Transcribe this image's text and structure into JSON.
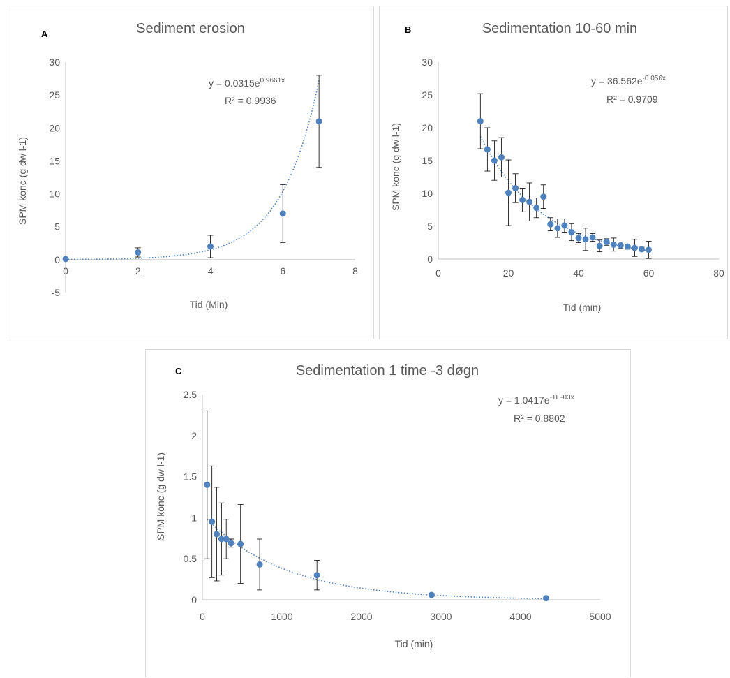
{
  "colors": {
    "series": "#4f81bd",
    "trend": "#4f81bd",
    "axis": "#bfbfbf",
    "text": "#595959",
    "error_bar": "#000000"
  },
  "chart_data": [
    {
      "panel_letter": "A",
      "type": "scatter",
      "title": "Sediment erosion",
      "xlabel": "Tid (Min)",
      "ylabel": "SPM konc (g dw l-1)",
      "xlim": [
        0,
        8
      ],
      "ylim": [
        -5,
        30
      ],
      "x_ticks": [
        "0",
        "2",
        "4",
        "6",
        "8"
      ],
      "y_ticks": [
        "-5",
        "0",
        "5",
        "10",
        "15",
        "20",
        "25",
        "30"
      ],
      "x_tick_values": [
        0,
        2,
        4,
        6,
        8
      ],
      "y_tick_values": [
        -5,
        0,
        5,
        10,
        15,
        20,
        25,
        30
      ],
      "points": [
        {
          "x": 0,
          "y": 0.1,
          "err": 0
        },
        {
          "x": 2,
          "y": 1.1,
          "err": 0.7
        },
        {
          "x": 4,
          "y": 2.0,
          "err": 1.7
        },
        {
          "x": 6,
          "y": 7.0,
          "err": 4.4
        },
        {
          "x": 7,
          "y": 21.0,
          "err": 7.0
        }
      ],
      "trendline": {
        "type": "exponential",
        "a": 0.0315,
        "b": 0.9661,
        "x_range": [
          0,
          7
        ]
      },
      "equation_base": "y = 0.0315e",
      "equation_exp": "0.9661x",
      "r2_text": "R² = 0.9936"
    },
    {
      "panel_letter": "B",
      "type": "scatter",
      "title": "Sedimentation 10-60 min",
      "xlabel": "Tid (min)",
      "ylabel": "SPM konc (g dw l-1)",
      "xlim": [
        0,
        80
      ],
      "ylim": [
        0,
        30
      ],
      "x_ticks": [
        "0",
        "20",
        "40",
        "60",
        "80"
      ],
      "y_ticks": [
        "0",
        "5",
        "10",
        "15",
        "20",
        "25",
        "30"
      ],
      "x_tick_values": [
        0,
        20,
        40,
        60,
        80
      ],
      "y_tick_values": [
        0,
        5,
        10,
        15,
        20,
        25,
        30
      ],
      "points": [
        {
          "x": 12,
          "y": 21.0,
          "err": 4.2
        },
        {
          "x": 14,
          "y": 16.7,
          "err": 3.3
        },
        {
          "x": 16,
          "y": 15.0,
          "err": 3.0
        },
        {
          "x": 18,
          "y": 15.5,
          "err": 3.0
        },
        {
          "x": 20,
          "y": 10.1,
          "err": 5.0
        },
        {
          "x": 22,
          "y": 10.8,
          "err": 2.2
        },
        {
          "x": 24,
          "y": 9.0,
          "err": 1.8
        },
        {
          "x": 26,
          "y": 8.7,
          "err": 2.9
        },
        {
          "x": 28,
          "y": 7.8,
          "err": 1.5
        },
        {
          "x": 30,
          "y": 9.5,
          "err": 1.8
        },
        {
          "x": 32,
          "y": 5.3,
          "err": 1.0
        },
        {
          "x": 34,
          "y": 4.7,
          "err": 1.4
        },
        {
          "x": 36,
          "y": 5.1,
          "err": 1.0
        },
        {
          "x": 38,
          "y": 4.1,
          "err": 1.3
        },
        {
          "x": 40,
          "y": 3.2,
          "err": 0.7
        },
        {
          "x": 42,
          "y": 3.0,
          "err": 1.7
        },
        {
          "x": 44,
          "y": 3.3,
          "err": 0.6
        },
        {
          "x": 46,
          "y": 2.0,
          "err": 0.9
        },
        {
          "x": 48,
          "y": 2.6,
          "err": 0.5
        },
        {
          "x": 50,
          "y": 2.2,
          "err": 1.0
        },
        {
          "x": 52,
          "y": 2.1,
          "err": 0.5
        },
        {
          "x": 54,
          "y": 1.9,
          "err": 0.4
        },
        {
          "x": 56,
          "y": 1.7,
          "err": 1.3
        },
        {
          "x": 58,
          "y": 1.5,
          "err": 0.3
        },
        {
          "x": 60,
          "y": 1.4,
          "err": 1.3
        }
      ],
      "trendline": {
        "type": "exponential",
        "a": 36.562,
        "b": -0.056,
        "x_range": [
          12,
          60
        ]
      },
      "equation_base": "y = 36.562e",
      "equation_exp": "-0.056x",
      "r2_text": "R² = 0.9709"
    },
    {
      "panel_letter": "C",
      "type": "scatter",
      "title": "Sedimentation 1 time -3 døgn",
      "xlabel": "Tid (min)",
      "ylabel": "SPM konc (g dw l-1)",
      "xlim": [
        0,
        5000
      ],
      "ylim": [
        0,
        2.5
      ],
      "x_ticks": [
        "0",
        "1000",
        "2000",
        "3000",
        "4000",
        "5000"
      ],
      "y_ticks": [
        "0",
        "0.5",
        "1",
        "1.5",
        "2",
        "2.5"
      ],
      "x_tick_values": [
        0,
        1000,
        2000,
        3000,
        4000,
        5000
      ],
      "y_tick_values": [
        0,
        0.5,
        1,
        1.5,
        2,
        2.5
      ],
      "points": [
        {
          "x": 60,
          "y": 1.4,
          "err": 0.9
        },
        {
          "x": 120,
          "y": 0.95,
          "err": 0.68
        },
        {
          "x": 180,
          "y": 0.8,
          "err": 0.57
        },
        {
          "x": 240,
          "y": 0.74,
          "err": 0.44
        },
        {
          "x": 300,
          "y": 0.74,
          "err": 0.24
        },
        {
          "x": 360,
          "y": 0.69,
          "err": 0.05
        },
        {
          "x": 480,
          "y": 0.68,
          "err": 0.48
        },
        {
          "x": 720,
          "y": 0.43,
          "err": 0.31
        },
        {
          "x": 1440,
          "y": 0.3,
          "err": 0.18
        },
        {
          "x": 2880,
          "y": 0.06,
          "err": 0.02
        },
        {
          "x": 4320,
          "y": 0.02,
          "err": 0.01
        }
      ],
      "trendline": {
        "type": "exponential",
        "a": 1.0417,
        "b": -0.001,
        "x_range": [
          60,
          4320
        ]
      },
      "equation_base": "y = 1.0417e",
      "equation_exp": "-1E-03x",
      "r2_text": "R² = 0.8802"
    }
  ]
}
